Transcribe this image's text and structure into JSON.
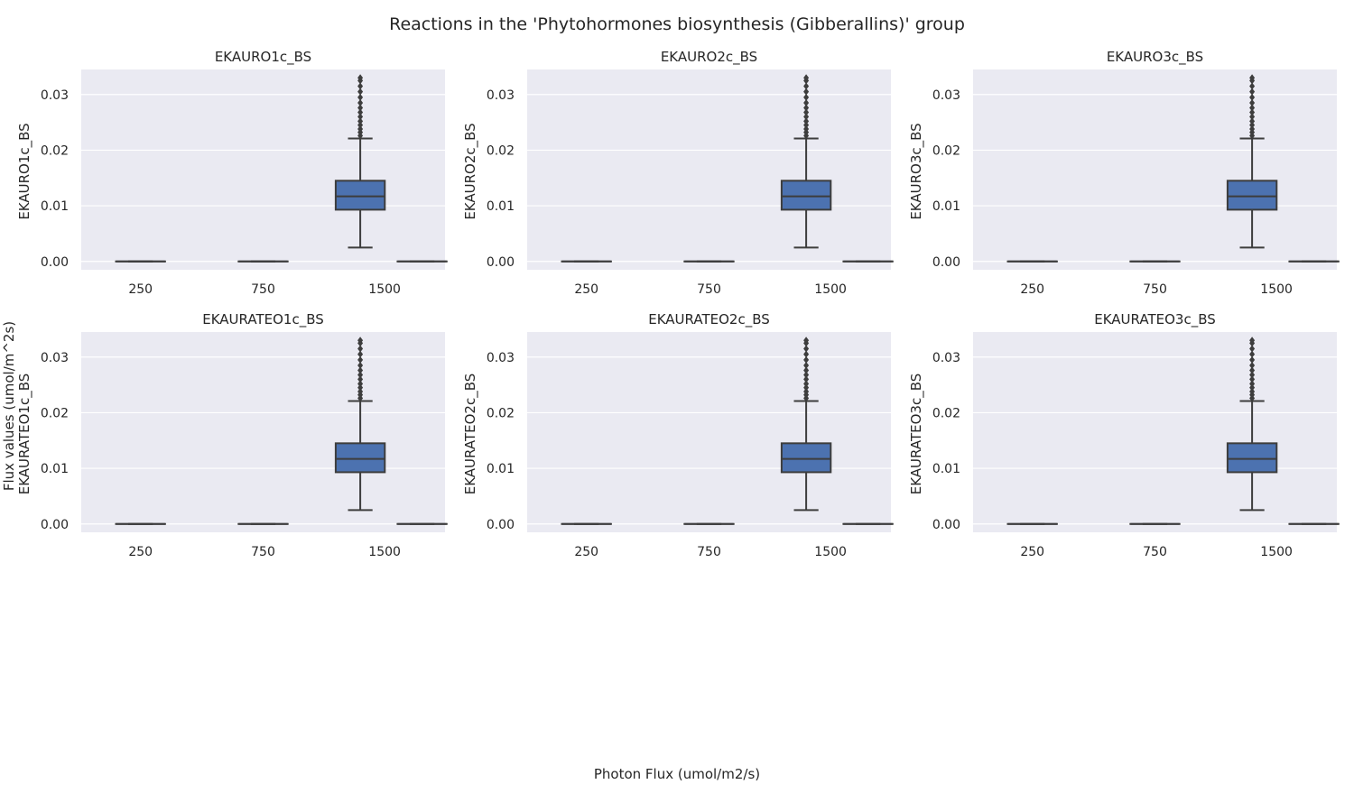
{
  "figure": {
    "title": "Reactions in the 'Phytohormones biosynthesis (Gibberallins)' group",
    "common_ylabel": "Flux values (umol/m^2s)",
    "common_xlabel": "Photon Flux (umol/m2/s)"
  },
  "colors": {
    "panel_bg": "#eaeaf2",
    "grid": "#ffffff",
    "box_fill": "#4c72b0",
    "line": "#3d3d3d",
    "text": "#262626"
  },
  "chart_data": [
    {
      "type": "box",
      "title": "EKAURO1c_BS",
      "ylabel": "EKAURO1c_BS",
      "xlabel": "",
      "categories": [
        "250",
        "750",
        "1500"
      ],
      "yticks": [
        0.0,
        0.01,
        0.02,
        0.03
      ],
      "ylim": [
        -0.0015,
        0.0345
      ],
      "grid": "on",
      "boxes": [
        {
          "category": "250",
          "series": "low",
          "q1": 0,
          "median": 0,
          "q3": 0,
          "whisker_low": 0,
          "whisker_high": 0,
          "outliers": []
        },
        {
          "category": "750",
          "series": "low",
          "q1": 0,
          "median": 0,
          "q3": 0,
          "whisker_low": 0,
          "whisker_high": 0,
          "outliers": []
        },
        {
          "category": "1500",
          "series": "low",
          "q1": 0.0093,
          "median": 0.0117,
          "q3": 0.0145,
          "whisker_low": 0.0025,
          "whisker_high": 0.0221,
          "outliers": [
            0.0226,
            0.0232,
            0.0238,
            0.0245,
            0.0252,
            0.026,
            0.0268,
            0.0276,
            0.0285,
            0.0295,
            0.0305,
            0.0315,
            0.0325,
            0.033
          ]
        },
        {
          "category": "1500",
          "series": "high",
          "q1": 0,
          "median": 0,
          "q3": 0,
          "whisker_low": 0,
          "whisker_high": 0,
          "outliers": []
        }
      ]
    },
    {
      "type": "box",
      "title": "EKAURO2c_BS",
      "ylabel": "EKAURO2c_BS",
      "xlabel": "",
      "categories": [
        "250",
        "750",
        "1500"
      ],
      "yticks": [
        0.0,
        0.01,
        0.02,
        0.03
      ],
      "ylim": [
        -0.0015,
        0.0345
      ],
      "grid": "on",
      "boxes": [
        {
          "category": "250",
          "series": "low",
          "q1": 0,
          "median": 0,
          "q3": 0,
          "whisker_low": 0,
          "whisker_high": 0,
          "outliers": []
        },
        {
          "category": "750",
          "series": "low",
          "q1": 0,
          "median": 0,
          "q3": 0,
          "whisker_low": 0,
          "whisker_high": 0,
          "outliers": []
        },
        {
          "category": "1500",
          "series": "low",
          "q1": 0.0093,
          "median": 0.0117,
          "q3": 0.0145,
          "whisker_low": 0.0025,
          "whisker_high": 0.0221,
          "outliers": [
            0.0226,
            0.0232,
            0.0238,
            0.0245,
            0.0252,
            0.026,
            0.0268,
            0.0276,
            0.0285,
            0.0295,
            0.0305,
            0.0315,
            0.0325,
            0.033
          ]
        },
        {
          "category": "1500",
          "series": "high",
          "q1": 0,
          "median": 0,
          "q3": 0,
          "whisker_low": 0,
          "whisker_high": 0,
          "outliers": []
        }
      ]
    },
    {
      "type": "box",
      "title": "EKAURO3c_BS",
      "ylabel": "EKAURO3c_BS",
      "xlabel": "",
      "categories": [
        "250",
        "750",
        "1500"
      ],
      "yticks": [
        0.0,
        0.01,
        0.02,
        0.03
      ],
      "ylim": [
        -0.0015,
        0.0345
      ],
      "grid": "on",
      "boxes": [
        {
          "category": "250",
          "series": "low",
          "q1": 0,
          "median": 0,
          "q3": 0,
          "whisker_low": 0,
          "whisker_high": 0,
          "outliers": []
        },
        {
          "category": "750",
          "series": "low",
          "q1": 0,
          "median": 0,
          "q3": 0,
          "whisker_low": 0,
          "whisker_high": 0,
          "outliers": []
        },
        {
          "category": "1500",
          "series": "low",
          "q1": 0.0093,
          "median": 0.0117,
          "q3": 0.0145,
          "whisker_low": 0.0025,
          "whisker_high": 0.0221,
          "outliers": [
            0.0226,
            0.0232,
            0.0238,
            0.0245,
            0.0252,
            0.026,
            0.0268,
            0.0276,
            0.0285,
            0.0295,
            0.0305,
            0.0315,
            0.0325,
            0.033
          ]
        },
        {
          "category": "1500",
          "series": "high",
          "q1": 0,
          "median": 0,
          "q3": 0,
          "whisker_low": 0,
          "whisker_high": 0,
          "outliers": []
        }
      ]
    },
    {
      "type": "box",
      "title": "EKAURATEO1c_BS",
      "ylabel": "EKAURATEO1c_BS",
      "xlabel": "",
      "categories": [
        "250",
        "750",
        "1500"
      ],
      "yticks": [
        0.0,
        0.01,
        0.02,
        0.03
      ],
      "ylim": [
        -0.0015,
        0.0345
      ],
      "grid": "on",
      "boxes": [
        {
          "category": "250",
          "series": "low",
          "q1": 0,
          "median": 0,
          "q3": 0,
          "whisker_low": 0,
          "whisker_high": 0,
          "outliers": []
        },
        {
          "category": "750",
          "series": "low",
          "q1": 0,
          "median": 0,
          "q3": 0,
          "whisker_low": 0,
          "whisker_high": 0,
          "outliers": []
        },
        {
          "category": "1500",
          "series": "low",
          "q1": 0.0093,
          "median": 0.0117,
          "q3": 0.0145,
          "whisker_low": 0.0025,
          "whisker_high": 0.0221,
          "outliers": [
            0.0226,
            0.0232,
            0.0238,
            0.0245,
            0.0252,
            0.026,
            0.0268,
            0.0276,
            0.0285,
            0.0295,
            0.0305,
            0.0315,
            0.0325,
            0.033
          ]
        },
        {
          "category": "1500",
          "series": "high",
          "q1": 0,
          "median": 0,
          "q3": 0,
          "whisker_low": 0,
          "whisker_high": 0,
          "outliers": []
        }
      ]
    },
    {
      "type": "box",
      "title": "EKAURATEO2c_BS",
      "ylabel": "EKAURATEO2c_BS",
      "xlabel": "",
      "categories": [
        "250",
        "750",
        "1500"
      ],
      "yticks": [
        0.0,
        0.01,
        0.02,
        0.03
      ],
      "ylim": [
        -0.0015,
        0.0345
      ],
      "grid": "on",
      "boxes": [
        {
          "category": "250",
          "series": "low",
          "q1": 0,
          "median": 0,
          "q3": 0,
          "whisker_low": 0,
          "whisker_high": 0,
          "outliers": []
        },
        {
          "category": "750",
          "series": "low",
          "q1": 0,
          "median": 0,
          "q3": 0,
          "whisker_low": 0,
          "whisker_high": 0,
          "outliers": []
        },
        {
          "category": "1500",
          "series": "low",
          "q1": 0.0093,
          "median": 0.0117,
          "q3": 0.0145,
          "whisker_low": 0.0025,
          "whisker_high": 0.0221,
          "outliers": [
            0.0226,
            0.0232,
            0.0238,
            0.0245,
            0.0252,
            0.026,
            0.0268,
            0.0276,
            0.0285,
            0.0295,
            0.0305,
            0.0315,
            0.0325,
            0.033
          ]
        },
        {
          "category": "1500",
          "series": "high",
          "q1": 0,
          "median": 0,
          "q3": 0,
          "whisker_low": 0,
          "whisker_high": 0,
          "outliers": []
        }
      ]
    },
    {
      "type": "box",
      "title": "EKAURATEO3c_BS",
      "ylabel": "EKAURATEO3c_BS",
      "xlabel": "",
      "categories": [
        "250",
        "750",
        "1500"
      ],
      "yticks": [
        0.0,
        0.01,
        0.02,
        0.03
      ],
      "ylim": [
        -0.0015,
        0.0345
      ],
      "grid": "on",
      "boxes": [
        {
          "category": "250",
          "series": "low",
          "q1": 0,
          "median": 0,
          "q3": 0,
          "whisker_low": 0,
          "whisker_high": 0,
          "outliers": []
        },
        {
          "category": "750",
          "series": "low",
          "q1": 0,
          "median": 0,
          "q3": 0,
          "whisker_low": 0,
          "whisker_high": 0,
          "outliers": []
        },
        {
          "category": "1500",
          "series": "low",
          "q1": 0.0093,
          "median": 0.0117,
          "q3": 0.0145,
          "whisker_low": 0.0025,
          "whisker_high": 0.0221,
          "outliers": [
            0.0226,
            0.0232,
            0.0238,
            0.0245,
            0.0252,
            0.026,
            0.0268,
            0.0276,
            0.0285,
            0.0295,
            0.0305,
            0.0315,
            0.0325,
            0.033
          ]
        },
        {
          "category": "1500",
          "series": "high",
          "q1": 0,
          "median": 0,
          "q3": 0,
          "whisker_low": 0,
          "whisker_high": 0,
          "outliers": []
        }
      ]
    }
  ]
}
